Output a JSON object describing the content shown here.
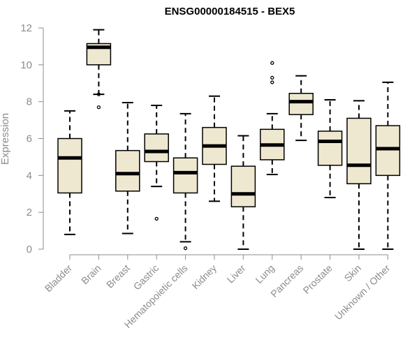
{
  "chart_data": {
    "type": "boxplot",
    "title": "ENSG00000184515 - BEX5",
    "ylabel": "Expression",
    "xlabel": "",
    "ylim": [
      0,
      12
    ],
    "yticks": [
      0,
      2,
      4,
      6,
      8,
      10,
      12
    ],
    "grid": false,
    "box_color": "#eee8d0",
    "categories": [
      "Bladder",
      "Brain",
      "Breast",
      "Gastric",
      "Hematopoietic cells",
      "Kidney",
      "Liver",
      "Lung",
      "Pancreas",
      "Prostate",
      "Skin",
      "Unknown / Other"
    ],
    "boxes": [
      {
        "name": "Bladder",
        "whisker_low": 0.8,
        "q1": 3.05,
        "median": 4.95,
        "q3": 6.0,
        "whisker_high": 7.5,
        "outliers": []
      },
      {
        "name": "Brain",
        "whisker_low": 8.4,
        "q1": 10.0,
        "median": 10.95,
        "q3": 11.15,
        "whisker_high": 11.9,
        "outliers": [
          8.4,
          7.7
        ]
      },
      {
        "name": "Breast",
        "whisker_low": 0.85,
        "q1": 3.15,
        "median": 4.1,
        "q3": 5.35,
        "whisker_high": 7.95,
        "outliers": []
      },
      {
        "name": "Gastric",
        "whisker_low": 3.4,
        "q1": 4.75,
        "median": 5.3,
        "q3": 6.25,
        "whisker_high": 7.8,
        "outliers": [
          1.65
        ]
      },
      {
        "name": "Hematopoietic cells",
        "whisker_low": 0.4,
        "q1": 3.05,
        "median": 4.15,
        "q3": 4.95,
        "whisker_high": 7.35,
        "outliers": [
          0.05
        ]
      },
      {
        "name": "Kidney",
        "whisker_low": 2.6,
        "q1": 4.6,
        "median": 5.6,
        "q3": 6.6,
        "whisker_high": 8.3,
        "outliers": []
      },
      {
        "name": "Liver",
        "whisker_low": 0.0,
        "q1": 2.3,
        "median": 3.0,
        "q3": 4.5,
        "whisker_high": 6.15,
        "outliers": []
      },
      {
        "name": "Lung",
        "whisker_low": 4.05,
        "q1": 4.85,
        "median": 5.65,
        "q3": 6.5,
        "whisker_high": 7.35,
        "outliers": [
          9.05,
          9.3,
          10.1
        ]
      },
      {
        "name": "Pancreas",
        "whisker_low": 5.9,
        "q1": 7.3,
        "median": 8.0,
        "q3": 8.45,
        "whisker_high": 9.4,
        "outliers": []
      },
      {
        "name": "Prostate",
        "whisker_low": 2.8,
        "q1": 4.55,
        "median": 5.85,
        "q3": 6.4,
        "whisker_high": 8.1,
        "outliers": []
      },
      {
        "name": "Skin",
        "whisker_low": 0.0,
        "q1": 3.55,
        "median": 4.55,
        "q3": 7.1,
        "whisker_high": 8.05,
        "outliers": []
      },
      {
        "name": "Unknown / Other",
        "whisker_low": 0.0,
        "q1": 4.0,
        "median": 5.45,
        "q3": 6.7,
        "whisker_high": 9.05,
        "outliers": []
      }
    ]
  }
}
